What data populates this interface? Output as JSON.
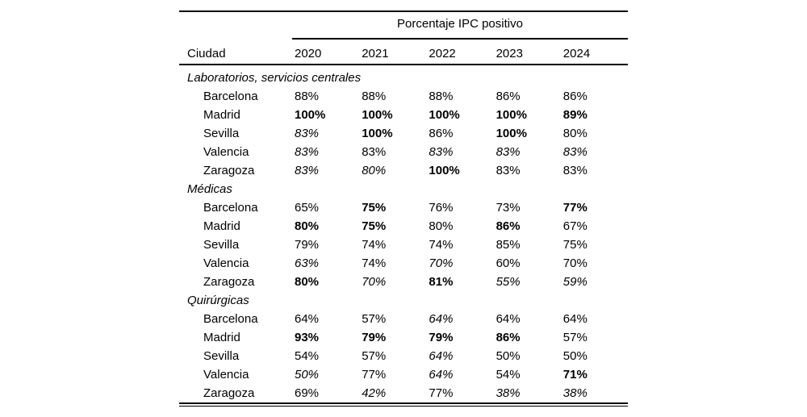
{
  "page": {
    "background_color": "#ffffff",
    "text_color": "#000000",
    "rule_color": "#000000"
  },
  "table": {
    "spanner_label": "Porcentaje IPC positivo",
    "city_column_header": "Ciudad",
    "year_columns": [
      "2020",
      "2021",
      "2022",
      "2023",
      "2024"
    ],
    "groups": [
      {
        "label": "Laboratorios, servicios centrales",
        "rows": [
          {
            "city": "Barcelona",
            "values": [
              {
                "text": "88%",
                "style": "r"
              },
              {
                "text": "88%",
                "style": "r"
              },
              {
                "text": "88%",
                "style": "r"
              },
              {
                "text": "86%",
                "style": "r"
              },
              {
                "text": "86%",
                "style": "r"
              }
            ]
          },
          {
            "city": "Madrid",
            "values": [
              {
                "text": "100%",
                "style": "b"
              },
              {
                "text": "100%",
                "style": "b"
              },
              {
                "text": "100%",
                "style": "b"
              },
              {
                "text": "100%",
                "style": "b"
              },
              {
                "text": "89%",
                "style": "b"
              }
            ]
          },
          {
            "city": "Sevilla",
            "values": [
              {
                "text": "83%",
                "style": "i"
              },
              {
                "text": "100%",
                "style": "b"
              },
              {
                "text": "86%",
                "style": "r"
              },
              {
                "text": "100%",
                "style": "b"
              },
              {
                "text": "80%",
                "style": "r"
              }
            ]
          },
          {
            "city": "Valencia",
            "values": [
              {
                "text": "83%",
                "style": "i"
              },
              {
                "text": "83%",
                "style": "r"
              },
              {
                "text": "83%",
                "style": "i"
              },
              {
                "text": "83%",
                "style": "i"
              },
              {
                "text": "83%",
                "style": "i"
              }
            ]
          },
          {
            "city": "Zaragoza",
            "values": [
              {
                "text": "83%",
                "style": "i"
              },
              {
                "text": "80%",
                "style": "i"
              },
              {
                "text": "100%",
                "style": "b"
              },
              {
                "text": "83%",
                "style": "r"
              },
              {
                "text": "83%",
                "style": "r"
              }
            ]
          }
        ]
      },
      {
        "label": "Médicas",
        "rows": [
          {
            "city": "Barcelona",
            "values": [
              {
                "text": "65%",
                "style": "r"
              },
              {
                "text": "75%",
                "style": "b"
              },
              {
                "text": "76%",
                "style": "r"
              },
              {
                "text": "73%",
                "style": "r"
              },
              {
                "text": "77%",
                "style": "b"
              }
            ]
          },
          {
            "city": "Madrid",
            "values": [
              {
                "text": "80%",
                "style": "b"
              },
              {
                "text": "75%",
                "style": "b"
              },
              {
                "text": "80%",
                "style": "r"
              },
              {
                "text": "86%",
                "style": "b"
              },
              {
                "text": "67%",
                "style": "r"
              }
            ]
          },
          {
            "city": "Sevilla",
            "values": [
              {
                "text": "79%",
                "style": "r"
              },
              {
                "text": "74%",
                "style": "r"
              },
              {
                "text": "74%",
                "style": "r"
              },
              {
                "text": "85%",
                "style": "r"
              },
              {
                "text": "75%",
                "style": "r"
              }
            ]
          },
          {
            "city": "Valencia",
            "values": [
              {
                "text": "63%",
                "style": "i"
              },
              {
                "text": "74%",
                "style": "r"
              },
              {
                "text": "70%",
                "style": "i"
              },
              {
                "text": "60%",
                "style": "r"
              },
              {
                "text": "70%",
                "style": "r"
              }
            ]
          },
          {
            "city": "Zaragoza",
            "values": [
              {
                "text": "80%",
                "style": "b"
              },
              {
                "text": "70%",
                "style": "i"
              },
              {
                "text": "81%",
                "style": "b"
              },
              {
                "text": "55%",
                "style": "i"
              },
              {
                "text": "59%",
                "style": "i"
              }
            ]
          }
        ]
      },
      {
        "label": "Quirúrgicas",
        "rows": [
          {
            "city": "Barcelona",
            "values": [
              {
                "text": "64%",
                "style": "r"
              },
              {
                "text": "57%",
                "style": "r"
              },
              {
                "text": "64%",
                "style": "i"
              },
              {
                "text": "64%",
                "style": "r"
              },
              {
                "text": "64%",
                "style": "r"
              }
            ]
          },
          {
            "city": "Madrid",
            "values": [
              {
                "text": "93%",
                "style": "b"
              },
              {
                "text": "79%",
                "style": "b"
              },
              {
                "text": "79%",
                "style": "b"
              },
              {
                "text": "86%",
                "style": "b"
              },
              {
                "text": "57%",
                "style": "r"
              }
            ]
          },
          {
            "city": "Sevilla",
            "values": [
              {
                "text": "54%",
                "style": "r"
              },
              {
                "text": "57%",
                "style": "r"
              },
              {
                "text": "64%",
                "style": "i"
              },
              {
                "text": "50%",
                "style": "r"
              },
              {
                "text": "50%",
                "style": "r"
              }
            ]
          },
          {
            "city": "Valencia",
            "values": [
              {
                "text": "50%",
                "style": "i"
              },
              {
                "text": "77%",
                "style": "r"
              },
              {
                "text": "64%",
                "style": "i"
              },
              {
                "text": "54%",
                "style": "r"
              },
              {
                "text": "71%",
                "style": "b"
              }
            ]
          },
          {
            "city": "Zaragoza",
            "values": [
              {
                "text": "69%",
                "style": "r"
              },
              {
                "text": "42%",
                "style": "i"
              },
              {
                "text": "77%",
                "style": "r"
              },
              {
                "text": "38%",
                "style": "i"
              },
              {
                "text": "38%",
                "style": "i"
              }
            ]
          }
        ]
      }
    ]
  }
}
